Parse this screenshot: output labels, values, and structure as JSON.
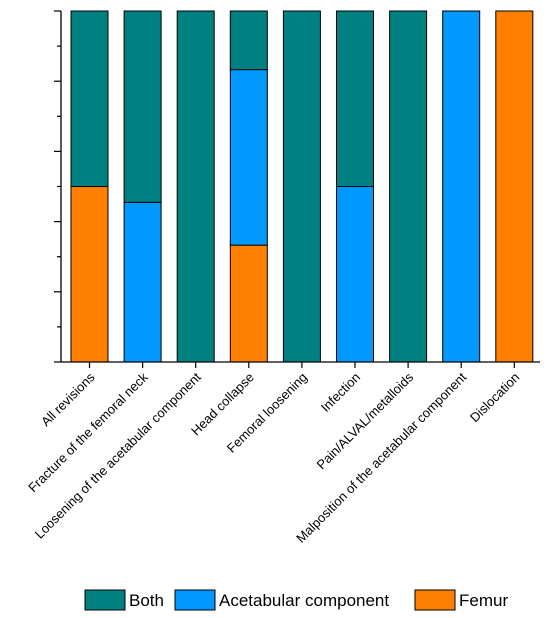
{
  "chart_data": {
    "type": "bar",
    "stacked": true,
    "normalized": true,
    "categories": [
      "All revisions",
      "Fracture of the femoral neck",
      "Loosening of the acetabular component",
      "Head collapse",
      "Femoral loosening",
      "Infection",
      "Pain/ALVAL/metalloids",
      "Malposition of the acetabular component",
      "Dislocation"
    ],
    "series": [
      {
        "name": "Femur",
        "color": "#FF8000",
        "values": [
          0.5,
          0,
          0,
          0.333,
          0,
          0,
          0,
          0,
          1
        ]
      },
      {
        "name": "Acetabular component",
        "color": "#0099FF",
        "values": [
          0,
          0.455,
          0,
          0.5,
          0,
          0.5,
          0,
          1,
          0
        ]
      },
      {
        "name": "Both",
        "color": "#008080",
        "values": [
          0.5,
          0.545,
          1,
          0.167,
          1,
          0.5,
          1,
          0,
          0
        ]
      }
    ],
    "ylim": [
      0,
      1
    ],
    "y_axis_tick_labels": "none",
    "grid": false,
    "legend": {
      "position": "bottom",
      "order": [
        "Both",
        "Acetabular component",
        "Femur"
      ]
    }
  }
}
